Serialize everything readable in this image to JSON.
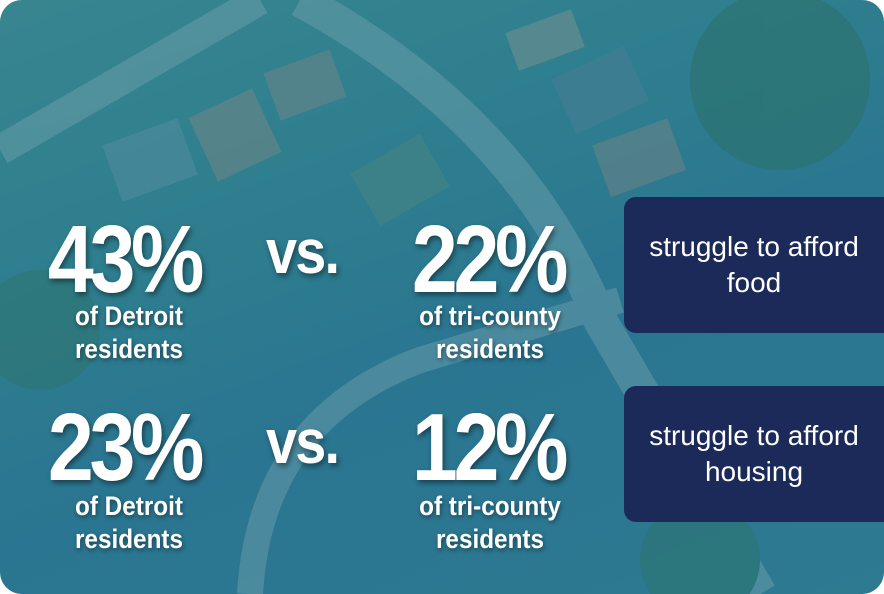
{
  "rows": [
    {
      "detroit_value": "43%",
      "detroit_label": "of Detroit residents",
      "versus": "vs.",
      "tricounty_value": "22%",
      "tricounty_label": "of tri-county residents",
      "outcome": "struggle to afford food"
    },
    {
      "detroit_value": "23%",
      "detroit_label": "of Detroit residents",
      "versus": "vs.",
      "tricounty_value": "12%",
      "tricounty_label": "of tri-county residents",
      "outcome": "struggle to afford housing"
    }
  ]
}
